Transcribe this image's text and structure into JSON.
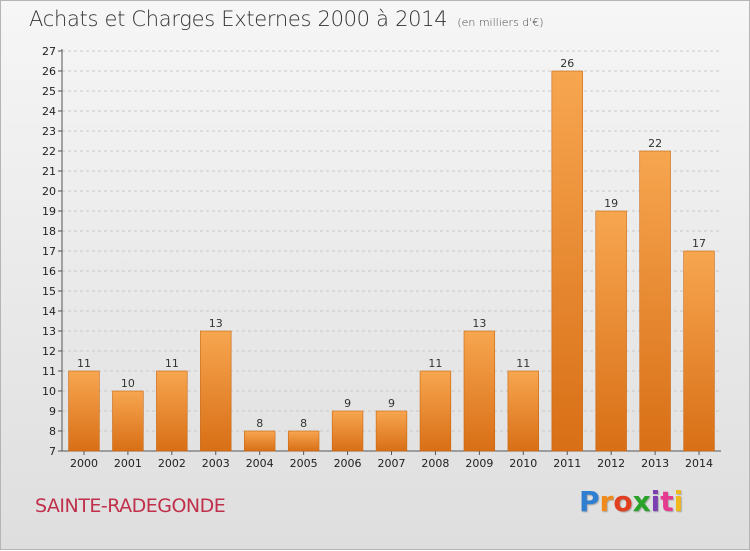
{
  "title": "Achats et Charges Externes 2000 à 2014",
  "unit": "(en milliers d'€)",
  "commune": "SAINTE-RADEGONDE",
  "brand": "Proxiti",
  "colors": {
    "bar_light": "#f7a650",
    "bar_dark": "#d86f16",
    "grid": "#c8c8c8",
    "commune": "#c0304a",
    "logo": [
      "#2f7fd0",
      "#f08a1c",
      "#e0401f",
      "#2aa32a",
      "#7a3fb0",
      "#e53a8f",
      "#f0b81c"
    ]
  },
  "chart_data": {
    "type": "bar",
    "title": "Achats et Charges Externes 2000 à 2014",
    "subtitle": "(en milliers d'€)",
    "categories": [
      "2000",
      "2001",
      "2002",
      "2003",
      "2004",
      "2005",
      "2006",
      "2007",
      "2008",
      "2009",
      "2010",
      "2011",
      "2012",
      "2013",
      "2014"
    ],
    "values": [
      11,
      10,
      11,
      13,
      8,
      8,
      9,
      9,
      11,
      13,
      11,
      26,
      19,
      22,
      17
    ],
    "ylim": [
      7,
      27
    ],
    "yticks": [
      7,
      8,
      9,
      10,
      11,
      12,
      13,
      14,
      15,
      16,
      17,
      18,
      19,
      20,
      21,
      22,
      23,
      24,
      25,
      26,
      27
    ],
    "grid": true,
    "data_labels": true
  }
}
